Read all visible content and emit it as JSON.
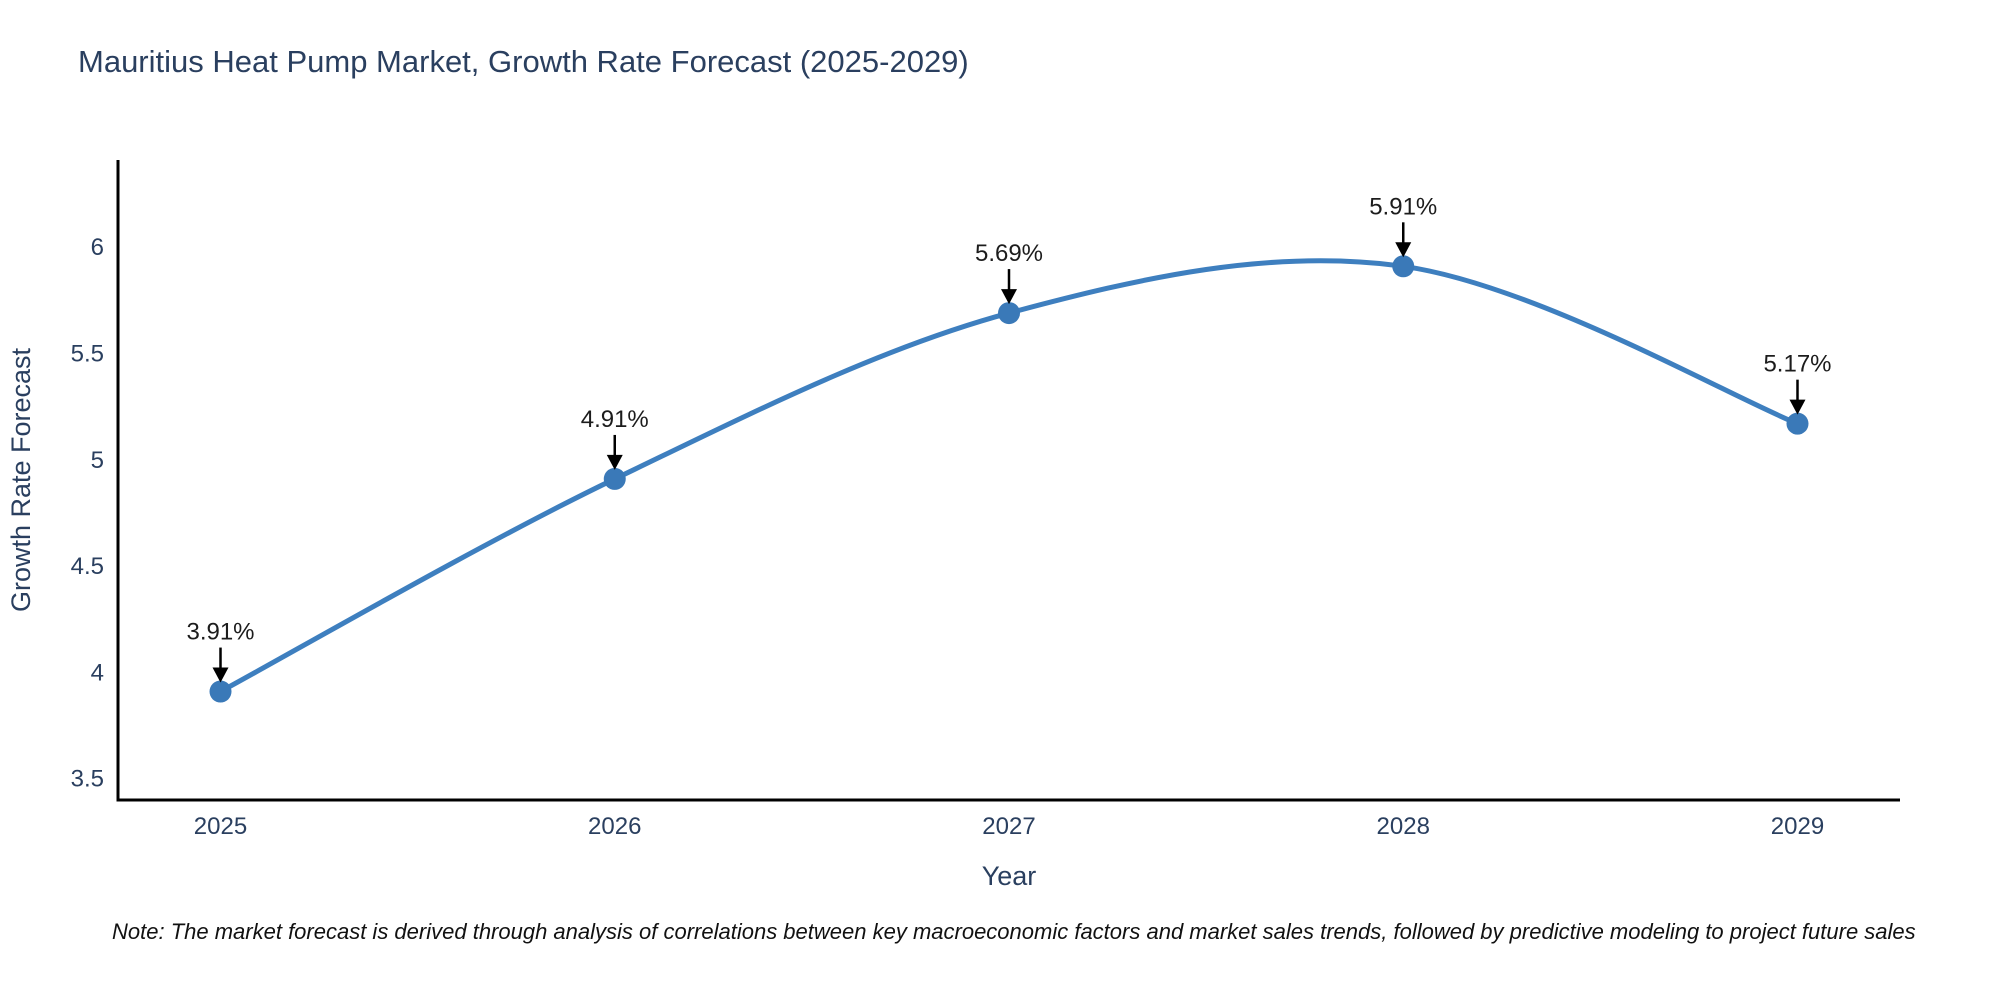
{
  "title": "Mauritius Heat Pump Market, Growth Rate Forecast (2025-2029)",
  "note": "Note: The market forecast is derived through analysis of correlations between key macroeconomic factors and market sales trends, followed by predictive modeling to project future sales",
  "colors": {
    "line": "#3e7fbf",
    "marker": "#3a79b8",
    "title_text": "#2a3f5f",
    "tick_text": "#2a3f5f",
    "axis_title_text": "#2a3f5f",
    "annotation_text": "#1c1c1c",
    "arrow": "#000000",
    "axis_line": "#000000",
    "background": "#ffffff"
  },
  "chart_data": {
    "type": "line",
    "title": "Mauritius Heat Pump Market, Growth Rate Forecast (2025-2029)",
    "xlabel": "Year",
    "ylabel": "Growth Rate Forecast",
    "x": [
      2025,
      2026,
      2027,
      2028,
      2029
    ],
    "y": [
      3.91,
      4.91,
      5.69,
      5.91,
      5.17
    ],
    "point_labels": [
      "3.91%",
      "4.91%",
      "5.69%",
      "5.91%",
      "5.17%"
    ],
    "xticks": [
      2025,
      2026,
      2027,
      2028,
      2029
    ],
    "yticks": [
      3.5,
      4,
      4.5,
      5,
      5.5,
      6
    ],
    "xlim": [
      2024.74,
      2029.26
    ],
    "ylim": [
      3.4,
      6.41
    ],
    "line_shape": "spline",
    "markers": true,
    "grid": false,
    "legend": "none",
    "annotation_style": "label-with-down-arrow"
  }
}
